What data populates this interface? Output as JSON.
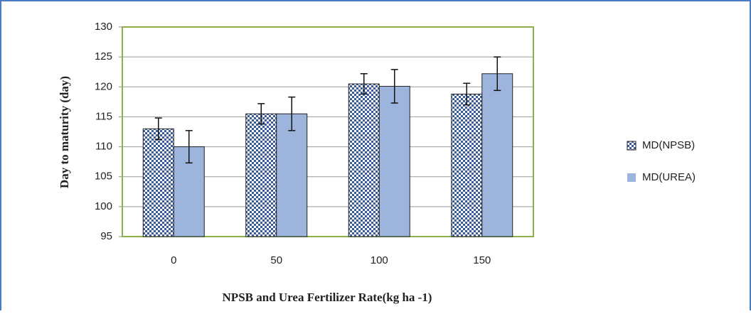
{
  "chart_data": {
    "type": "bar",
    "x_label": "NPSB and Urea Fertilizer Rate(kg ha -1)",
    "y_label": "Day to maturity (day)",
    "categories": [
      "0",
      "50",
      "100",
      "150"
    ],
    "series": [
      {
        "name": "MD(NPSB)",
        "color": "#3b5c9c",
        "pattern": "checker",
        "values": [
          113,
          115.5,
          120.5,
          118.8
        ],
        "errors": [
          1.8,
          1.7,
          1.7,
          1.8
        ]
      },
      {
        "name": "MD(UREA)",
        "color": "#9db5dd",
        "pattern": "solid",
        "values": [
          110,
          115.5,
          120.1,
          122.2
        ],
        "errors": [
          2.7,
          2.8,
          2.8,
          2.8
        ]
      }
    ],
    "ylim": [
      95,
      130
    ],
    "yticks": [
      95,
      100,
      105,
      110,
      115,
      120,
      125,
      130
    ],
    "grid": true,
    "legend": "right"
  }
}
